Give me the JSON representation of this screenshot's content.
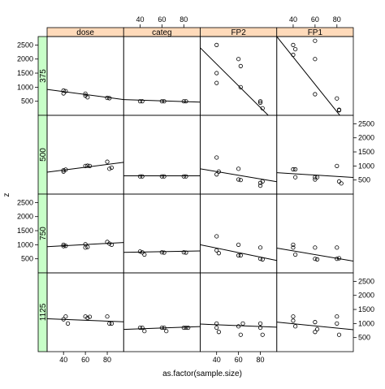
{
  "chart_data": {
    "type": "scatter",
    "xlabel": "as.factor(sample.size)",
    "ylabel": "z",
    "columns": [
      "dose",
      "categ",
      "FP2",
      "FP1"
    ],
    "rows": [
      "375",
      "500",
      "750",
      "1125"
    ],
    "x_ticks": [
      "40",
      "60",
      "80"
    ],
    "y_ticks": [
      "500",
      "1000",
      "1500",
      "2000",
      "2500"
    ],
    "xlim": [
      25,
      95
    ],
    "ylim": [
      0,
      2800
    ],
    "colors": {
      "strip": "#ffdaba",
      "row_strip": "#c8ffc8",
      "border": "#000000",
      "point": "#000000"
    },
    "panels": [
      {
        "row": "375",
        "column": "dose",
        "points": [
          [
            40,
            880
          ],
          [
            40,
            780
          ],
          [
            42,
            860
          ],
          [
            60,
            770
          ],
          [
            60,
            700
          ],
          [
            62,
            640
          ],
          [
            80,
            620
          ],
          [
            82,
            610
          ]
        ],
        "fit": [
          [
            25,
            920
          ],
          [
            95,
            560
          ]
        ]
      },
      {
        "row": "375",
        "column": "categ",
        "points": [
          [
            40,
            500
          ],
          [
            42,
            500
          ],
          [
            60,
            500
          ],
          [
            62,
            500
          ],
          [
            80,
            500
          ],
          [
            82,
            500
          ]
        ],
        "fit": [
          [
            25,
            560
          ],
          [
            95,
            470
          ]
        ]
      },
      {
        "row": "375",
        "column": "FP2",
        "points": [
          [
            40,
            2500
          ],
          [
            40,
            1500
          ],
          [
            40,
            1150
          ],
          [
            60,
            2000
          ],
          [
            62,
            1750
          ],
          [
            62,
            1000
          ],
          [
            80,
            500
          ],
          [
            80,
            450
          ],
          [
            82,
            250
          ]
        ],
        "fit": [
          [
            25,
            2400
          ],
          [
            95,
            -300
          ]
        ]
      },
      {
        "row": "375",
        "column": "FP1",
        "points": [
          [
            40,
            2500
          ],
          [
            40,
            2150
          ],
          [
            42,
            2350
          ],
          [
            60,
            2650
          ],
          [
            60,
            2000
          ],
          [
            60,
            750
          ],
          [
            80,
            600
          ],
          [
            82,
            200
          ],
          [
            82,
            180
          ]
        ],
        "fit": [
          [
            25,
            2800
          ],
          [
            95,
            -600
          ]
        ]
      },
      {
        "row": "500",
        "column": "dose",
        "points": [
          [
            40,
            850
          ],
          [
            40,
            800
          ],
          [
            42,
            870
          ],
          [
            60,
            1000
          ],
          [
            62,
            1010
          ],
          [
            64,
            1000
          ],
          [
            80,
            1150
          ],
          [
            82,
            900
          ],
          [
            84,
            940
          ]
        ],
        "fit": [
          [
            25,
            780
          ],
          [
            95,
            1130
          ]
        ]
      },
      {
        "row": "500",
        "column": "categ",
        "points": [
          [
            40,
            630
          ],
          [
            42,
            630
          ],
          [
            60,
            630
          ],
          [
            62,
            630
          ],
          [
            80,
            630
          ],
          [
            82,
            630
          ]
        ],
        "fit": [
          [
            25,
            650
          ],
          [
            95,
            650
          ]
        ]
      },
      {
        "row": "500",
        "column": "FP2",
        "points": [
          [
            40,
            1300
          ],
          [
            40,
            700
          ],
          [
            42,
            800
          ],
          [
            60,
            900
          ],
          [
            60,
            520
          ],
          [
            62,
            500
          ],
          [
            80,
            400
          ],
          [
            80,
            300
          ],
          [
            82,
            450
          ]
        ],
        "fit": [
          [
            25,
            900
          ],
          [
            95,
            440
          ]
        ]
      },
      {
        "row": "500",
        "column": "FP1",
        "points": [
          [
            40,
            880
          ],
          [
            42,
            880
          ],
          [
            42,
            600
          ],
          [
            60,
            600
          ],
          [
            60,
            520
          ],
          [
            62,
            600
          ],
          [
            80,
            1000
          ],
          [
            82,
            450
          ],
          [
            84,
            380
          ]
        ],
        "fit": [
          [
            25,
            760
          ],
          [
            95,
            590
          ]
        ]
      },
      {
        "row": "750",
        "column": "dose",
        "points": [
          [
            40,
            1000
          ],
          [
            40,
            950
          ],
          [
            42,
            960
          ],
          [
            60,
            1020
          ],
          [
            60,
            900
          ],
          [
            62,
            920
          ],
          [
            80,
            1100
          ],
          [
            82,
            1040
          ],
          [
            84,
            1000
          ]
        ],
        "fit": [
          [
            25,
            930
          ],
          [
            95,
            1080
          ]
        ]
      },
      {
        "row": "750",
        "column": "categ",
        "points": [
          [
            40,
            760
          ],
          [
            42,
            730
          ],
          [
            44,
            650
          ],
          [
            60,
            730
          ],
          [
            62,
            720
          ],
          [
            80,
            730
          ],
          [
            82,
            720
          ]
        ],
        "fit": [
          [
            25,
            730
          ],
          [
            95,
            780
          ]
        ]
      },
      {
        "row": "750",
        "column": "FP2",
        "points": [
          [
            40,
            1300
          ],
          [
            40,
            800
          ],
          [
            42,
            700
          ],
          [
            60,
            1000
          ],
          [
            60,
            620
          ],
          [
            62,
            620
          ],
          [
            80,
            900
          ],
          [
            80,
            500
          ],
          [
            82,
            480
          ]
        ],
        "fit": [
          [
            25,
            1000
          ],
          [
            95,
            440
          ]
        ]
      },
      {
        "row": "750",
        "column": "FP1",
        "points": [
          [
            40,
            1000
          ],
          [
            40,
            900
          ],
          [
            42,
            650
          ],
          [
            60,
            900
          ],
          [
            60,
            500
          ],
          [
            62,
            480
          ],
          [
            80,
            900
          ],
          [
            80,
            500
          ],
          [
            82,
            520
          ]
        ],
        "fit": [
          [
            25,
            880
          ],
          [
            95,
            420
          ]
        ]
      },
      {
        "row": "1125",
        "column": "dose",
        "points": [
          [
            40,
            1150
          ],
          [
            42,
            1250
          ],
          [
            44,
            1000
          ],
          [
            60,
            1250
          ],
          [
            62,
            1200
          ],
          [
            64,
            1240
          ],
          [
            80,
            1250
          ],
          [
            82,
            1000
          ],
          [
            84,
            1000
          ]
        ],
        "fit": [
          [
            25,
            1170
          ],
          [
            95,
            1060
          ]
        ]
      },
      {
        "row": "1125",
        "column": "categ",
        "points": [
          [
            40,
            850
          ],
          [
            42,
            850
          ],
          [
            44,
            730
          ],
          [
            60,
            850
          ],
          [
            62,
            850
          ],
          [
            64,
            730
          ],
          [
            80,
            850
          ],
          [
            82,
            850
          ],
          [
            84,
            850
          ]
        ],
        "fit": [
          [
            25,
            790
          ],
          [
            95,
            890
          ]
        ]
      },
      {
        "row": "1125",
        "column": "FP2",
        "points": [
          [
            40,
            1000
          ],
          [
            40,
            850
          ],
          [
            42,
            700
          ],
          [
            60,
            900
          ],
          [
            62,
            600
          ],
          [
            64,
            1000
          ],
          [
            80,
            1000
          ],
          [
            80,
            850
          ],
          [
            82,
            600
          ]
        ],
        "fit": [
          [
            25,
            980
          ],
          [
            95,
            870
          ]
        ]
      },
      {
        "row": "1125",
        "column": "FP1",
        "points": [
          [
            40,
            1250
          ],
          [
            40,
            1100
          ],
          [
            42,
            900
          ],
          [
            60,
            1050
          ],
          [
            60,
            700
          ],
          [
            62,
            800
          ],
          [
            80,
            1250
          ],
          [
            80,
            1000
          ],
          [
            82,
            600
          ]
        ],
        "fit": [
          [
            25,
            1050
          ],
          [
            95,
            780
          ]
        ]
      }
    ]
  }
}
